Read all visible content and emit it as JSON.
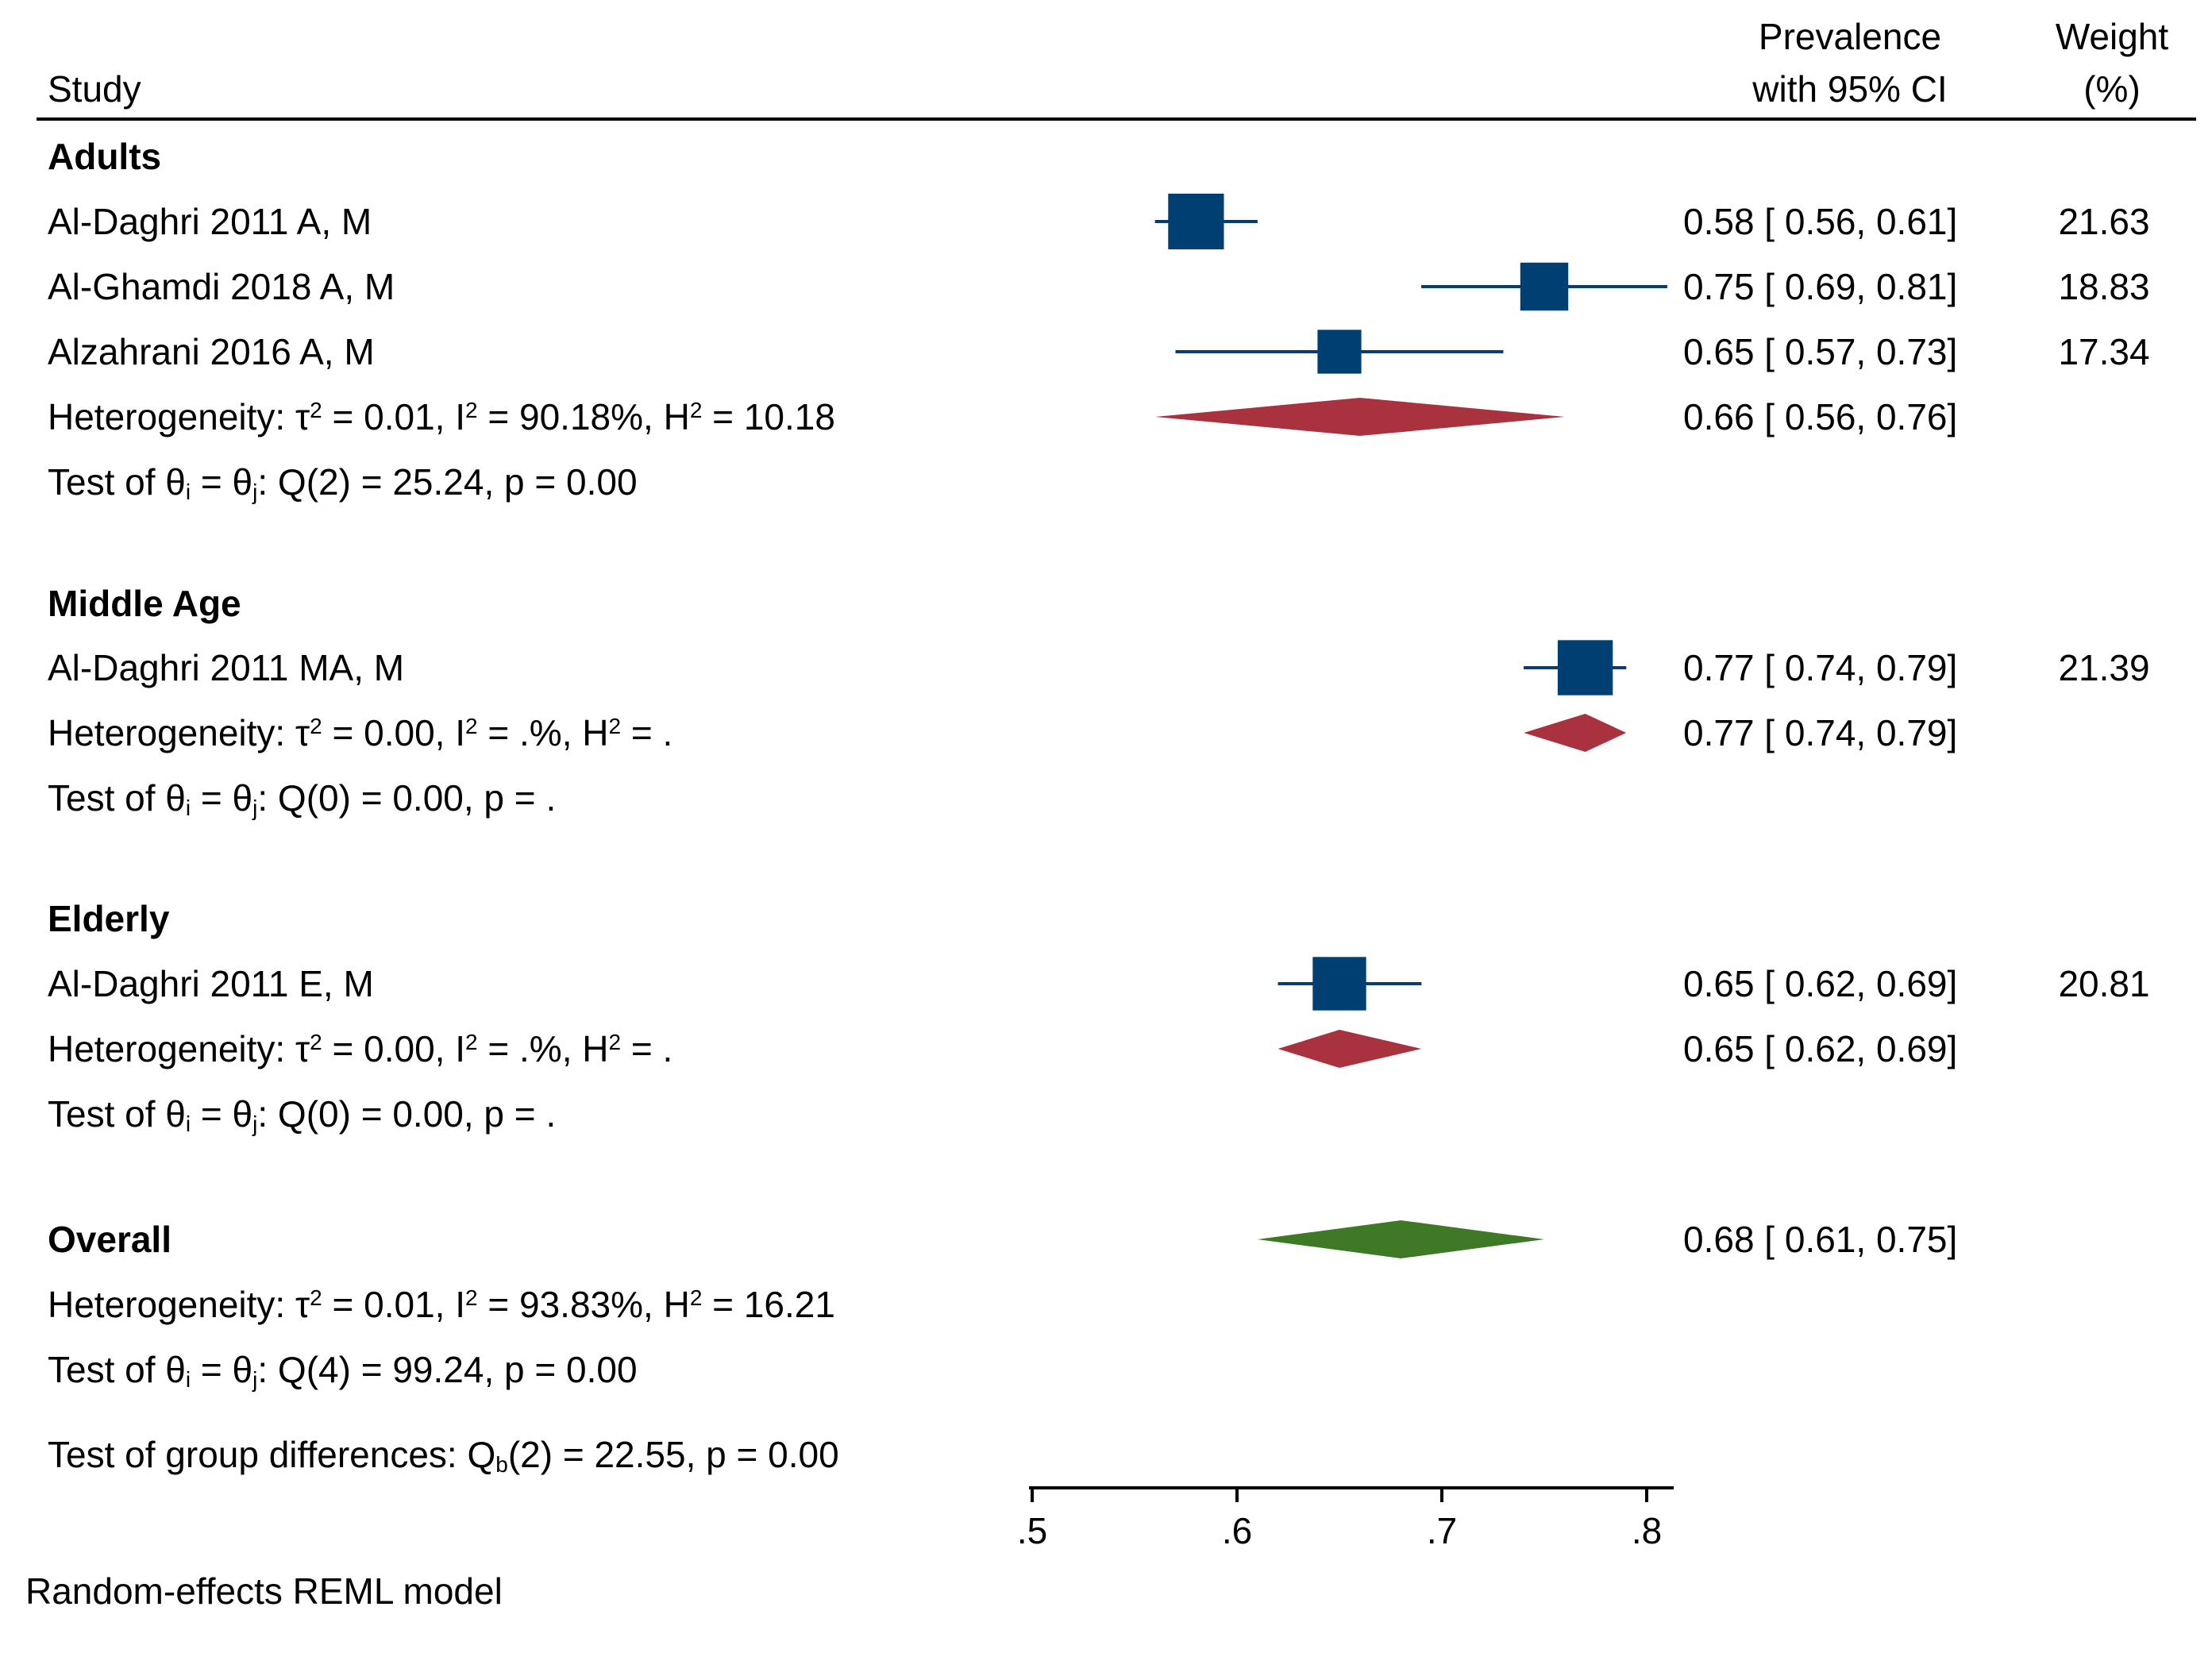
{
  "chart_data": {
    "type": "forest",
    "header": {
      "study": "Study",
      "prevalence_line1": "Prevalence",
      "prevalence_line2": "with 95% CI",
      "weight_line1": "Weight",
      "weight_line2": "(%)"
    },
    "groups": [
      {
        "name": "Adults",
        "studies": [
          {
            "label": "Al-Daghri 2011 A, M",
            "estimate": 0.58,
            "lower": 0.56,
            "upper": 0.61,
            "ci_text": "0.58 [ 0.56,  0.61]",
            "weight": "21.63"
          },
          {
            "label": "Al-Ghamdi 2018 A, M",
            "estimate": 0.75,
            "lower": 0.69,
            "upper": 0.81,
            "ci_text": "0.75 [ 0.69,  0.81]",
            "weight": "18.83"
          },
          {
            "label": "Alzahrani 2016 A, M",
            "estimate": 0.65,
            "lower": 0.57,
            "upper": 0.73,
            "ci_text": "0.65 [ 0.57,  0.73]",
            "weight": "17.34"
          }
        ],
        "summary": {
          "estimate": 0.66,
          "lower": 0.56,
          "upper": 0.76,
          "ci_text": "0.66 [ 0.56,  0.76]"
        },
        "heterogeneity": {
          "tau2": "0.01",
          "i2": "90.18%",
          "h2": "10.18"
        },
        "test": {
          "df": "2",
          "q": "25.24",
          "p": "0.00"
        }
      },
      {
        "name": "Middle Age",
        "studies": [
          {
            "label": "Al-Daghri 2011 MA, M",
            "estimate": 0.77,
            "lower": 0.74,
            "upper": 0.79,
            "ci_text": "0.77 [ 0.74,  0.79]",
            "weight": "21.39"
          }
        ],
        "summary": {
          "estimate": 0.77,
          "lower": 0.74,
          "upper": 0.79,
          "ci_text": "0.77 [ 0.74,  0.79]"
        },
        "heterogeneity": {
          "tau2": "0.00",
          "i2": ".%",
          "h2": "."
        },
        "test": {
          "df": "0",
          "q": "0.00",
          "p": "."
        }
      },
      {
        "name": "Elderly",
        "studies": [
          {
            "label": "Al-Daghri 2011 E, M",
            "estimate": 0.65,
            "lower": 0.62,
            "upper": 0.69,
            "ci_text": "0.65 [ 0.62,  0.69]",
            "weight": "20.81"
          }
        ],
        "summary": {
          "estimate": 0.65,
          "lower": 0.62,
          "upper": 0.69,
          "ci_text": "0.65 [ 0.62,  0.69]"
        },
        "heterogeneity": {
          "tau2": "0.00",
          "i2": ".%",
          "h2": "."
        },
        "test": {
          "df": "0",
          "q": "0.00",
          "p": "."
        }
      }
    ],
    "overall": {
      "name": "Overall",
      "summary": {
        "estimate": 0.68,
        "lower": 0.61,
        "upper": 0.75,
        "ci_text": "0.68 [ 0.61,  0.75]"
      },
      "heterogeneity": {
        "tau2": "0.01",
        "i2": "93.83%",
        "h2": "16.21"
      },
      "test": {
        "df": "4",
        "q": "99.24",
        "p": "0.00"
      }
    },
    "group_test": {
      "df": "2",
      "q": "22.55",
      "p": "0.00"
    },
    "x_axis": {
      "ticks": [
        0.5,
        0.6,
        0.7,
        0.8
      ],
      "tick_labels": [
        ".5",
        ".6",
        ".7",
        ".8"
      ],
      "range": [
        0.5,
        0.8
      ]
    },
    "note": "Random-effects REML model",
    "colors": {
      "study_marker": "#003f72",
      "group_diamond": "#a8323e",
      "overall_diamond": "#3e7a26",
      "axis": "#000000"
    }
  }
}
